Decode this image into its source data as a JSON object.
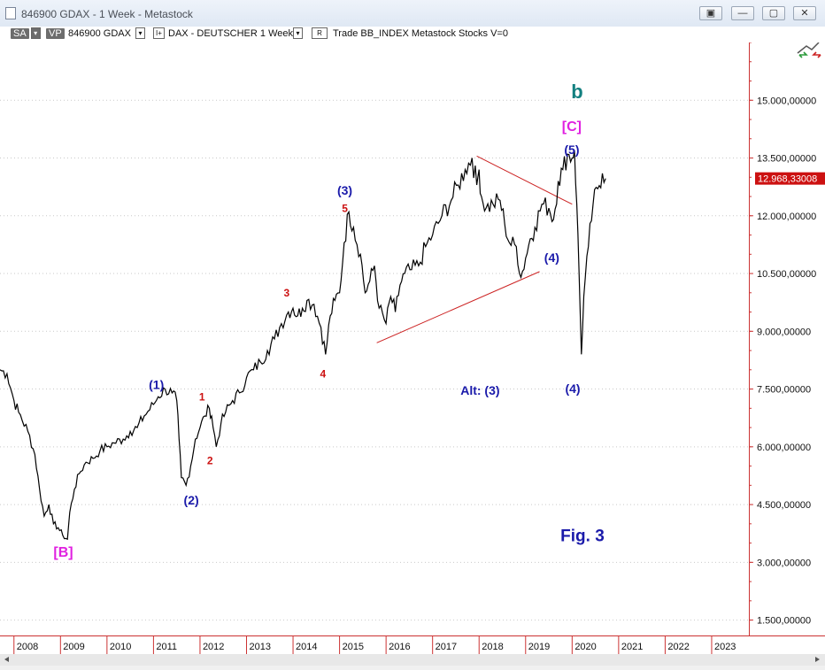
{
  "window": {
    "title": "846900 GDAX - 1 Week - Metastock",
    "buttons": [
      "▣",
      "—",
      "▢",
      "✕"
    ]
  },
  "toolbar": {
    "sa": "SA",
    "vp": "VP",
    "symbol": "846900 GDAX",
    "chart_type": "I+",
    "instrument_info": "DAX - DEUTSCHER  1 Week",
    "r_label": "R",
    "trade_info": "Trade  BB_INDEX  Metastock  Stocks  V=0"
  },
  "colors": {
    "price_line": "#000000",
    "trendline": "#cc2222",
    "wave_blue": "#1a1aaa",
    "wave_red": "#cc1111",
    "wave_magenta": "#e020e0",
    "wave_teal": "#138080",
    "last_price_bg": "#cc1111"
  },
  "chart_data": {
    "type": "line",
    "title": "",
    "xlabel": "",
    "ylabel": "",
    "x_ticks": [
      "2008",
      "2009",
      "2010",
      "2011",
      "2012",
      "2013",
      "2014",
      "2015",
      "2016",
      "2017",
      "2018",
      "2019",
      "2020",
      "2021",
      "2022",
      "2023"
    ],
    "y_ticks": [
      "1.500,00000",
      "3.000,00000",
      "4.500,00000",
      "6.000,00000",
      "7.500,00000",
      "9.000,00000",
      "10.500,00000",
      "12.000,00000",
      "13.500,00000",
      "15.000,00000"
    ],
    "xlim": [
      2007.7,
      2023.8
    ],
    "ylim": [
      1100,
      16500
    ],
    "last_price": "12.968,33008",
    "series": [
      {
        "x": [
          2007.7,
          2007.85,
          2008.0,
          2008.1,
          2008.3,
          2008.45,
          2008.55,
          2008.65,
          2008.75,
          2008.85,
          2008.95,
          2009.05,
          2009.15,
          2009.2,
          2009.3,
          2009.4,
          2009.55,
          2009.7,
          2009.85,
          2010.0,
          2010.15,
          2010.35,
          2010.5,
          2010.65,
          2010.8,
          2011.0,
          2011.1,
          2011.25,
          2011.4,
          2011.5,
          2011.55,
          2011.6,
          2011.7,
          2011.8,
          2011.9,
          2012.0,
          2012.1,
          2012.2,
          2012.25,
          2012.35,
          2012.45,
          2012.55,
          2012.7,
          2012.85,
          2013.0,
          2013.15,
          2013.3,
          2013.45,
          2013.6,
          2013.75,
          2013.9,
          2014.0,
          2014.1,
          2014.2,
          2014.3,
          2014.45,
          2014.6,
          2014.7,
          2014.8,
          2014.9,
          2015.0,
          2015.1,
          2015.2,
          2015.3,
          2015.45,
          2015.55,
          2015.65,
          2015.75,
          2015.85,
          2016.0,
          2016.1,
          2016.2,
          2016.3,
          2016.4,
          2016.55,
          2016.7,
          2016.85,
          2017.0,
          2017.2,
          2017.4,
          2017.55,
          2017.7,
          2017.85,
          2017.95,
          2018.0,
          2018.05,
          2018.15,
          2018.3,
          2018.45,
          2018.55,
          2018.65,
          2018.8,
          2018.9,
          2019.0,
          2019.1,
          2019.2,
          2019.35,
          2019.5,
          2019.6,
          2019.7,
          2019.8,
          2019.9,
          2020.0,
          2020.05,
          2020.1,
          2020.15,
          2020.2,
          2020.25,
          2020.35,
          2020.45,
          2020.55,
          2020.65,
          2020.72
        ],
        "values": [
          8000,
          7900,
          7200,
          6900,
          6400,
          5800,
          4900,
          4200,
          4500,
          4000,
          3900,
          3700,
          3600,
          4300,
          4900,
          5300,
          5600,
          5700,
          5900,
          6000,
          6100,
          6200,
          6400,
          6500,
          6800,
          7100,
          7300,
          7500,
          7400,
          7200,
          6200,
          5200,
          5000,
          5500,
          6200,
          6500,
          6800,
          7000,
          6800,
          6000,
          6600,
          6900,
          7200,
          7400,
          7800,
          8000,
          8200,
          8500,
          8800,
          9200,
          9500,
          9600,
          9400,
          9600,
          9800,
          9700,
          9100,
          8400,
          9400,
          9800,
          10000,
          11300,
          12100,
          11700,
          11000,
          10000,
          10300,
          10700,
          9600,
          9200,
          9900,
          9500,
          10200,
          10500,
          10600,
          10700,
          11200,
          11500,
          12000,
          12400,
          12800,
          13200,
          13500,
          12800,
          13200,
          12500,
          12200,
          12300,
          12400,
          11800,
          11300,
          11200,
          10400,
          10900,
          11400,
          11700,
          12300,
          12200,
          11900,
          12900,
          13200,
          13600,
          13500,
          13700,
          12300,
          10500,
          8400,
          9900,
          11200,
          12300,
          12700,
          13100,
          12968
        ]
      }
    ],
    "trendlines": [
      {
        "x": [
          2017.95,
          2020.0
        ],
        "y": [
          13550,
          12300
        ]
      },
      {
        "x": [
          2015.8,
          2019.3
        ],
        "y": [
          8700,
          10550
        ]
      }
    ],
    "annotations": [
      {
        "text": "b",
        "x": 2019.98,
        "y": 15050,
        "color": "wave_teal",
        "size": 22
      },
      {
        "text": "[C]",
        "x": 2019.78,
        "y": 14200,
        "color": "wave_magenta",
        "size": 16
      },
      {
        "text": "(5)",
        "x": 2019.83,
        "y": 13600,
        "color": "wave_blue",
        "size": 14
      },
      {
        "text": "(3)",
        "x": 2014.95,
        "y": 12550,
        "color": "wave_blue",
        "size": 14
      },
      {
        "text": "5",
        "x": 2015.05,
        "y": 12100,
        "color": "wave_red",
        "size": 12
      },
      {
        "text": "3",
        "x": 2013.8,
        "y": 9900,
        "color": "wave_red",
        "size": 12
      },
      {
        "text": "4",
        "x": 2014.58,
        "y": 7800,
        "color": "wave_red",
        "size": 12
      },
      {
        "text": "(1)",
        "x": 2010.9,
        "y": 7500,
        "color": "wave_blue",
        "size": 14
      },
      {
        "text": "1",
        "x": 2011.98,
        "y": 7200,
        "color": "wave_red",
        "size": 12
      },
      {
        "text": "2",
        "x": 2012.15,
        "y": 5550,
        "color": "wave_red",
        "size": 12
      },
      {
        "text": "(2)",
        "x": 2011.65,
        "y": 4500,
        "color": "wave_blue",
        "size": 14
      },
      {
        "text": "[B]",
        "x": 2008.85,
        "y": 3150,
        "color": "wave_magenta",
        "size": 16
      },
      {
        "text": "Alt:  (3)",
        "x": 2017.6,
        "y": 7350,
        "color": "wave_blue",
        "size": 14
      },
      {
        "text": "(4)",
        "x": 2019.4,
        "y": 10800,
        "color": "wave_blue",
        "size": 14
      },
      {
        "text": "(4)",
        "x": 2019.85,
        "y": 7400,
        "color": "wave_blue",
        "size": 14
      },
      {
        "text": "Fig.  3",
        "x": 2019.75,
        "y": 3550,
        "color": "wave_blue",
        "size": 19
      }
    ]
  }
}
